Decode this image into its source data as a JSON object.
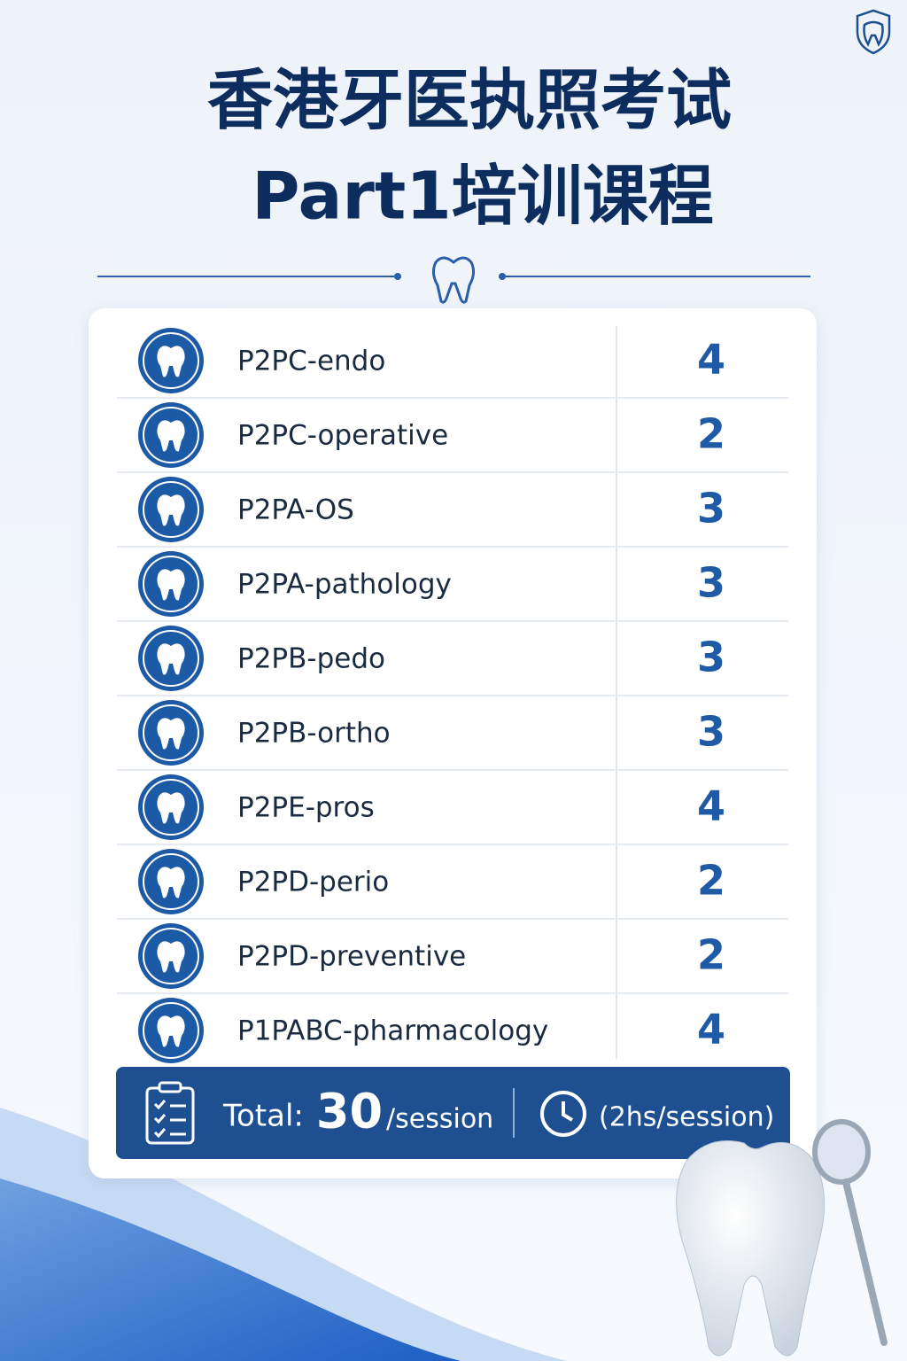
{
  "header": {
    "title_line1": "香港牙医执照考试",
    "title_line2": "Part1培训课程"
  },
  "table": {
    "rows": [
      [
        "P2PC-endo",
        4
      ],
      [
        "P2PC-operative",
        2
      ],
      [
        "P2PA-OS",
        3
      ],
      [
        "P2PA-pathology",
        3
      ],
      [
        "P2PB-pedo",
        3
      ],
      [
        "P2PB-ortho",
        3
      ],
      [
        "P2PE-pros",
        4
      ],
      [
        "P2PD-perio",
        2
      ],
      [
        "P2PD-preventive",
        2
      ],
      [
        "P1PABC-pharmacology",
        4
      ]
    ]
  },
  "footer": {
    "total_label": "Total:",
    "total": 30,
    "total_unit": "/session",
    "duration": "(2hs/session)"
  }
}
